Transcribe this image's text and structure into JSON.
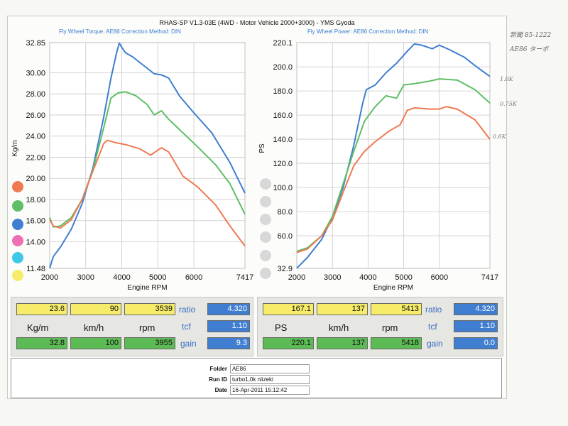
{
  "header": {
    "title": "RHAS-SP V1.3-03E  (4WD - Motor Vehicle 2000+3000) - YMS Gyoda",
    "left_sub": "Fly Wheel Torque: AE86      Correction Method: DIN",
    "right_sub": "Fly Wheel Power: AE86      Correction Method: DIN"
  },
  "colors": {
    "blue": "#3f7ed0",
    "green": "#5fbf66",
    "orange": "#ef7a52",
    "yellow": "#f6ec6a",
    "cyan": "#3fc7e6",
    "pink": "#ee6fb3"
  },
  "chart_data": [
    {
      "type": "line",
      "title": "Fly Wheel Torque: AE86",
      "xlabel": "Engine RPM",
      "ylabel": "Kg/m",
      "xlim": [
        2000,
        7417
      ],
      "ylim": [
        11.48,
        32.85
      ],
      "xticks": [
        "2000",
        "3000",
        "4000",
        "5000",
        "6000",
        "7417"
      ],
      "yticks": [
        "32.85",
        "30.00",
        "28.00",
        "26.00",
        "24.00",
        "22.00",
        "20.00",
        "18.00",
        "16.00",
        "14.00",
        "11.48"
      ],
      "grid": true,
      "series": [
        {
          "color": "#3f7ed0",
          "points": [
            [
              2000,
              11.5
            ],
            [
              2100,
              12.6
            ],
            [
              2300,
              13.5
            ],
            [
              2600,
              15.2
            ],
            [
              2900,
              17.6
            ],
            [
              3200,
              21.0
            ],
            [
              3500,
              25.8
            ],
            [
              3700,
              29.5
            ],
            [
              3850,
              31.8
            ],
            [
              3930,
              32.8
            ],
            [
              4000,
              32.4
            ],
            [
              4100,
              31.9
            ],
            [
              4300,
              31.5
            ],
            [
              4600,
              30.7
            ],
            [
              4900,
              29.9
            ],
            [
              5100,
              29.8
            ],
            [
              5300,
              29.5
            ],
            [
              5600,
              27.8
            ],
            [
              6000,
              26.2
            ],
            [
              6500,
              24.3
            ],
            [
              7000,
              21.5
            ],
            [
              7417,
              18.6
            ]
          ]
        },
        {
          "color": "#5fbf66",
          "points": [
            [
              2000,
              16.3
            ],
            [
              2100,
              15.4
            ],
            [
              2300,
              15.5
            ],
            [
              2600,
              16.3
            ],
            [
              2900,
              18.0
            ],
            [
              3200,
              20.8
            ],
            [
              3500,
              24.8
            ],
            [
              3700,
              27.6
            ],
            [
              3900,
              28.1
            ],
            [
              4100,
              28.2
            ],
            [
              4400,
              27.8
            ],
            [
              4700,
              27.0
            ],
            [
              4900,
              26.0
            ],
            [
              5100,
              26.4
            ],
            [
              5300,
              25.6
            ],
            [
              5700,
              24.3
            ],
            [
              6100,
              23.0
            ],
            [
              6600,
              21.3
            ],
            [
              7000,
              19.5
            ],
            [
              7417,
              16.6
            ]
          ]
        },
        {
          "color": "#ef7a52",
          "points": [
            [
              2000,
              16.1
            ],
            [
              2100,
              15.5
            ],
            [
              2300,
              15.3
            ],
            [
              2600,
              16.1
            ],
            [
              2900,
              18.0
            ],
            [
              3200,
              20.7
            ],
            [
              3500,
              23.3
            ],
            [
              3600,
              23.6
            ],
            [
              3800,
              23.4
            ],
            [
              4100,
              23.2
            ],
            [
              4500,
              22.8
            ],
            [
              4800,
              22.2
            ],
            [
              5100,
              22.9
            ],
            [
              5300,
              22.5
            ],
            [
              5700,
              20.2
            ],
            [
              6100,
              19.2
            ],
            [
              6600,
              17.5
            ],
            [
              7000,
              15.5
            ],
            [
              7417,
              13.6
            ]
          ]
        }
      ]
    },
    {
      "type": "line",
      "title": "Fly Wheel Power: AE86",
      "xlabel": "Engine RPM",
      "ylabel": "PS",
      "xlim": [
        2000,
        7417
      ],
      "ylim": [
        32.9,
        220.1
      ],
      "xticks": [
        "2000",
        "3000",
        "4000",
        "5000",
        "6000",
        "7417"
      ],
      "yticks": [
        "220.1",
        "200.0",
        "180.0",
        "160.0",
        "140.0",
        "120.0",
        "100.0",
        "80.0",
        "60.0",
        "32.9"
      ],
      "grid": true,
      "series": [
        {
          "color": "#3f7ed0",
          "points": [
            [
              2000,
              33.0
            ],
            [
              2300,
              42.0
            ],
            [
              2700,
              57.0
            ],
            [
              3000,
              75.0
            ],
            [
              3300,
              100.0
            ],
            [
              3600,
              135.0
            ],
            [
              3850,
              170.0
            ],
            [
              3950,
              181.0
            ],
            [
              4200,
              185.0
            ],
            [
              4500,
              195.0
            ],
            [
              4800,
              203.0
            ],
            [
              5100,
              213.0
            ],
            [
              5300,
              219.0
            ],
            [
              5500,
              218.0
            ],
            [
              5800,
              215.0
            ],
            [
              6000,
              218.0
            ],
            [
              6300,
              214.0
            ],
            [
              6700,
              208.0
            ],
            [
              7000,
              201.0
            ],
            [
              7417,
              192.0
            ]
          ]
        },
        {
          "color": "#5fbf66",
          "points": [
            [
              2000,
              47.0
            ],
            [
              2300,
              50.0
            ],
            [
              2700,
              60.0
            ],
            [
              3000,
              76.0
            ],
            [
              3300,
              103.0
            ],
            [
              3600,
              130.0
            ],
            [
              3900,
              155.0
            ],
            [
              4200,
              167.0
            ],
            [
              4500,
              176.0
            ],
            [
              4800,
              174.0
            ],
            [
              5000,
              185.0
            ],
            [
              5300,
              186.0
            ],
            [
              5700,
              188.0
            ],
            [
              6000,
              190.0
            ],
            [
              6500,
              189.0
            ],
            [
              7000,
              181.0
            ],
            [
              7417,
              170.0
            ]
          ]
        },
        {
          "color": "#ef7a52",
          "points": [
            [
              2000,
              46.0
            ],
            [
              2300,
              49.0
            ],
            [
              2700,
              60.0
            ],
            [
              3000,
              73.0
            ],
            [
              3300,
              96.0
            ],
            [
              3600,
              118.0
            ],
            [
              3900,
              130.0
            ],
            [
              4200,
              138.0
            ],
            [
              4600,
              147.0
            ],
            [
              4900,
              152.0
            ],
            [
              5100,
              164.0
            ],
            [
              5300,
              166.0
            ],
            [
              5700,
              165.0
            ],
            [
              6000,
              165.0
            ],
            [
              6200,
              167.0
            ],
            [
              6500,
              165.0
            ],
            [
              7000,
              156.0
            ],
            [
              7417,
              140.0
            ]
          ]
        }
      ]
    }
  ],
  "annotations": {
    "blue_end": "1.0K",
    "green_end": "0.75K",
    "orange_end": "0.6K",
    "margin_top": "新聞 85-1222",
    "margin_sub": "AE86 ターボ"
  },
  "left_panel": {
    "top": [
      "23.6",
      "90",
      "3539"
    ],
    "units": [
      "Kg/m",
      "km/h",
      "rpm"
    ],
    "bottom": [
      "32.8",
      "100",
      "3955"
    ],
    "labels": [
      "ratio",
      "tcf",
      "gain"
    ],
    "values": [
      "4.320",
      "1.10",
      "9.3"
    ]
  },
  "right_panel": {
    "top": [
      "167.1",
      "137",
      "5413"
    ],
    "units": [
      "PS",
      "km/h",
      "rpm"
    ],
    "bottom": [
      "220.1",
      "137",
      "5418"
    ],
    "labels": [
      "ratio",
      "tcf",
      "gain"
    ],
    "values": [
      "4.320",
      "1.10",
      "0.0"
    ]
  },
  "info": {
    "folder_label": "Folder",
    "folder": "AE86",
    "run_label": "Run ID",
    "run": "turbo1,0k niizeki",
    "date_label": "Date",
    "date": "16-Apr-2011   15:12:42"
  }
}
